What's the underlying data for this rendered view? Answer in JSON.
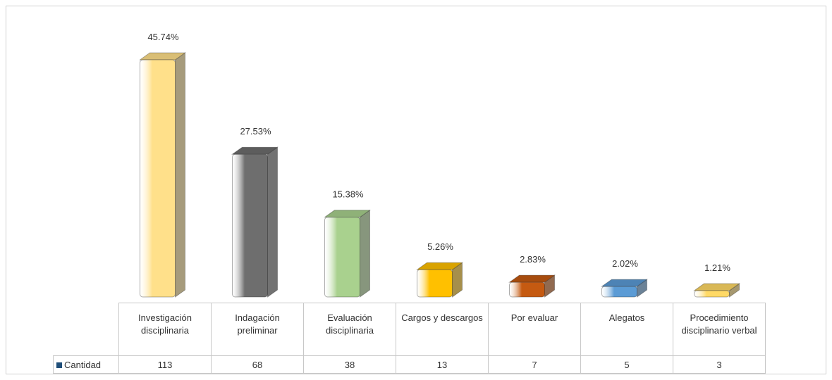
{
  "chart_data": {
    "type": "bar",
    "categories": [
      "Investigación disciplinaria",
      "Indagación preliminar",
      "Evaluación disciplinaria",
      "Cargos y descargos",
      "Por evaluar",
      "Alegatos",
      "Procedimiento disciplinario verbal"
    ],
    "series": [
      {
        "name": "Cantidad",
        "color": "#1f4e79",
        "values": [
          113,
          68,
          38,
          13,
          7,
          5,
          3
        ]
      }
    ],
    "data_labels": [
      "45.74%",
      "27.53%",
      "15.38%",
      "5.26%",
      "2.83%",
      "2.02%",
      "1.21%"
    ],
    "bar_colors": [
      "#ffe08a",
      "#6e6e6e",
      "#a9d18e",
      "#ffc000",
      "#c55a11",
      "#5b9bd5",
      "#ffd966"
    ],
    "data_table": true
  }
}
